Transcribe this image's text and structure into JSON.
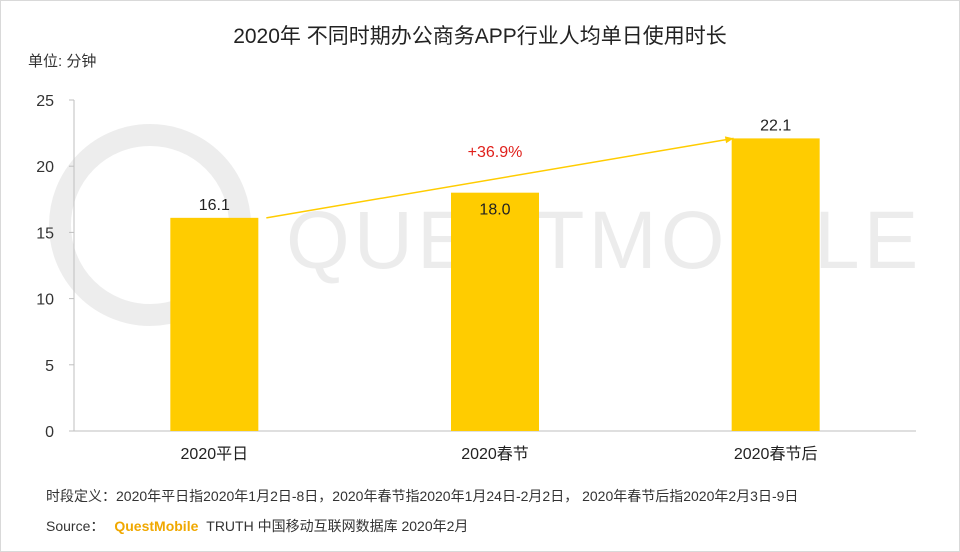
{
  "chart_data": {
    "type": "bar",
    "title": "2020年 不同时期办公商务APP行业人均单日使用时长",
    "unit_label": "单位: 分钟",
    "categories": [
      "2020平日",
      "2020春节",
      "2020春节后"
    ],
    "values": [
      16.1,
      18.0,
      22.1
    ],
    "value_labels": [
      "16.1",
      "18.0",
      "22.1"
    ],
    "ylim": [
      0,
      25
    ],
    "yticks": [
      0,
      5,
      10,
      15,
      20,
      25
    ],
    "grid": false,
    "bar_color": "#ffcc00",
    "trend_line": {
      "from_category": 0,
      "to_category": 2,
      "color": "#ffcc00"
    },
    "annotation": {
      "text": "+36.9%",
      "color": "#e0201b"
    }
  },
  "watermark": "QUESTMOBILE",
  "footer": {
    "definition": "时段定义：2020年平日指2020年1月2日-8日，2020年春节指2020年1月24日-2月2日， 2020年春节后指2020年2月3日-9日",
    "source_label": "Source：",
    "source_brand": "QuestMobile",
    "source_rest": "TRUTH 中国移动互联网数据库 2020年2月"
  }
}
